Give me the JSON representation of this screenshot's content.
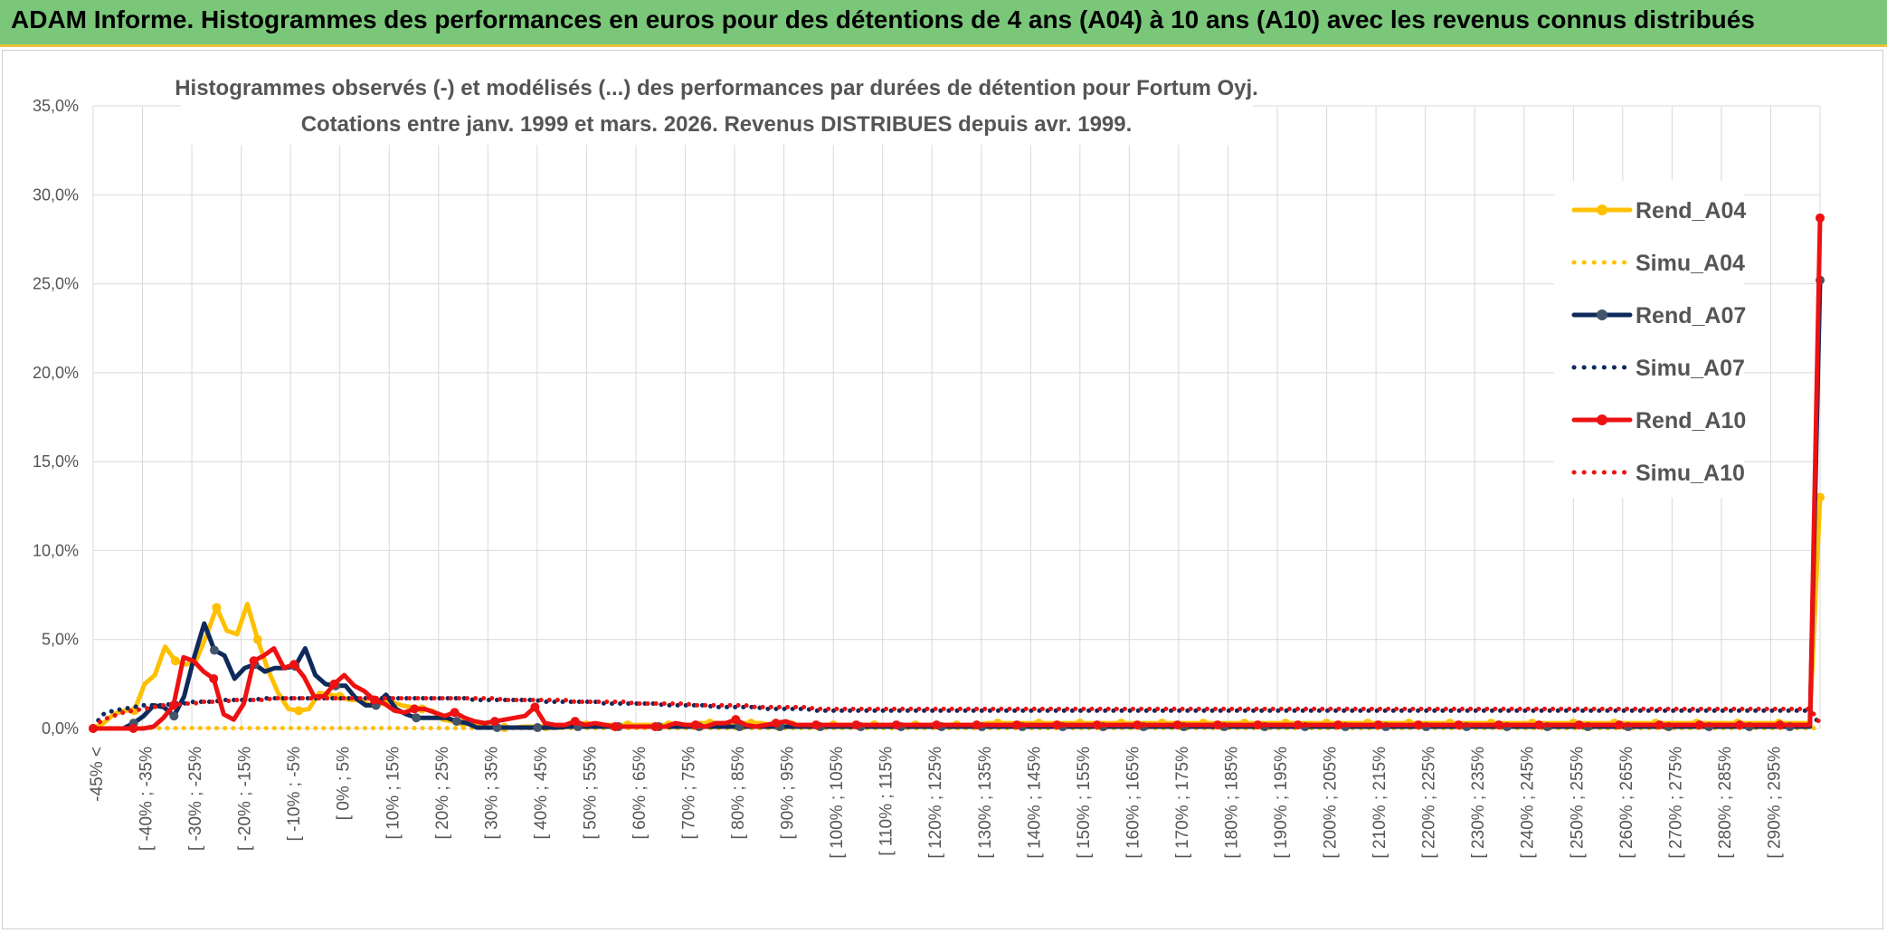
{
  "header": {
    "title": "ADAM Informe. Histogrammes des performances en euros pour des détentions de 4 ans (A04) à 10 ans (A10) avec les revenus connus distribués"
  },
  "chart_data": {
    "type": "line",
    "title_line1": "Histogrammes observés (-) et modélisés (...) des performances par durées de détention pour Fortum Oyj.",
    "title_line2": "Cotations entre janv. 1999 et mars. 2026. Revenus DISTRIBUES depuis avr. 1999.",
    "ylim": [
      0,
      35
    ],
    "yticks": [
      "0,0%",
      "5,0%",
      "10,0%",
      "15,0%",
      "20,0%",
      "25,0%",
      "30,0%",
      "35,0%"
    ],
    "x_labels": [
      "-45% <",
      "[ -40% ; -35%",
      "[ -30% ; -25%",
      "[ -20% ; -15%",
      "[ -10% ; -5%",
      "[ 0% ; 5%",
      "[ 10% ; 15%",
      "[ 20% ; 25%",
      "[ 30% ; 35%",
      "[ 40% ; 45%",
      "[ 50% ; 55%",
      "[ 60% ; 65%",
      "[ 70% ; 75%",
      "[ 80% ; 85%",
      "[ 90% ; 95%",
      "[ 100% ; 105%",
      "[ 110% ; 115%",
      "[ 120% ; 125%",
      "[ 130% ; 135%",
      "[ 140% ; 145%",
      "[ 150% ; 155%",
      "[ 160% ; 165%",
      "[ 170% ; 175%",
      "[ 180% ; 185%",
      "[ 190% ; 195%",
      "[ 200% ; 205%",
      "[ 210% ; 215%",
      "[ 220% ; 225%",
      "[ 230% ; 235%",
      "[ 240% ; 245%",
      "[ 250% ; 255%",
      "[ 260% ; 265%",
      "[ 270% ; 275%",
      "[ 280% ; 285%",
      "[ 290% ; 295%"
    ],
    "legend_position": "right",
    "series": [
      {
        "name": "Rend_A04",
        "color": "#ffc000",
        "style": "solid",
        "values": [
          0,
          0.3,
          0.8,
          1.0,
          1.0,
          2.5,
          3.0,
          4.6,
          3.8,
          3.6,
          3.8,
          5.2,
          6.8,
          5.5,
          5.3,
          7.0,
          5.0,
          3.3,
          2.0,
          1.1,
          1.0,
          1.1,
          2.0,
          1.9,
          1.8,
          1.6,
          1.6,
          1.3,
          1.5,
          1.5,
          1.3,
          1.2,
          1.1,
          1.0,
          0.5,
          0.4,
          0.3,
          0.2,
          0.1,
          0.05,
          0.05,
          0.05,
          0.1,
          0.1,
          0.1,
          0.1,
          0.1,
          0.2,
          0.2,
          0.2,
          0.2,
          0.2,
          0.2,
          0.2,
          0.2,
          0.2,
          0.2,
          0.2,
          0.2,
          0.3,
          0.3,
          0.3,
          0.3,
          0.3,
          0.3,
          0.3,
          0.2,
          0.2,
          0.2,
          0.2,
          0.2,
          0.2,
          0.2,
          0.2,
          0.2,
          0.2,
          0.2,
          0.2,
          0.2,
          0.2,
          0.2,
          0.2,
          0.2,
          0.2,
          0.2,
          0.2,
          0.2,
          0.3,
          0.3,
          0.3,
          0.3,
          0.3,
          0.3,
          0.3,
          0.3,
          0.3,
          0.3,
          0.3,
          0.3,
          0.3,
          0.3,
          0.3,
          0.3,
          0.3,
          0.3,
          0.3,
          0.3,
          0.3,
          0.3,
          0.3,
          0.3,
          0.3,
          0.3,
          0.3,
          0.3,
          0.3,
          0.3,
          0.3,
          0.3,
          0.3,
          0.3,
          0.3,
          0.3,
          0.3,
          0.3,
          0.3,
          0.3,
          0.3,
          0.3,
          0.3,
          0.3,
          0.3,
          0.3,
          0.3,
          0.3,
          0.3,
          0.3,
          0.3,
          0.3,
          0.3,
          0.3,
          0.3,
          0.3,
          0.3,
          0.3,
          0.3,
          0.3,
          0.3,
          0.3,
          0.3,
          0.3,
          0.3,
          0.3,
          0.3,
          0.3,
          0.3,
          0.3,
          0.3,
          0.3,
          0.3,
          0.3,
          0.3,
          0.3,
          0.3,
          0.3,
          0.3,
          0.3,
          0.3,
          13.0
        ]
      },
      {
        "name": "Simu_A04",
        "color": "#ffc000",
        "style": "dotted",
        "values": [
          0.02,
          0.02,
          0.02,
          0.02,
          0.02,
          0.02,
          0.02,
          0.02,
          0.02,
          0.02,
          0.02,
          0.02,
          0.02,
          0.02,
          0.02,
          0.02,
          0.02,
          0.02,
          0.02,
          0.02,
          0.02,
          0.02,
          0.02,
          0.02,
          0.02,
          0.02,
          0.02,
          0.02,
          0.02,
          0.02,
          0.02,
          0.02,
          0.02,
          0.02,
          0.02,
          0.02,
          0.02,
          0.02,
          0.02,
          0.02,
          0.02,
          0.02,
          0.02,
          0.02,
          0.02,
          0.02,
          0.02,
          0.02,
          0.02,
          0.02,
          0.02,
          0.02,
          0.02,
          0.02,
          0.02,
          0.02,
          0.02,
          0.02,
          0.02,
          0.02,
          0.02,
          0.02,
          0.02,
          0.02,
          0.02,
          0.02,
          0.02,
          0.02,
          0.02,
          0.02,
          0.02,
          0.02,
          0.02,
          0.02,
          0.02,
          0.02,
          0.02,
          0.02,
          0.02,
          0.02,
          0.02,
          0.02,
          0.02,
          0.02,
          0.02,
          0.02,
          0.02,
          0.02,
          0.02,
          0.02,
          0.02,
          0.02,
          0.02,
          0.02,
          0.02,
          0.02,
          0.02,
          0.02,
          0.02,
          0.02,
          0.02,
          0.02,
          0.02,
          0.02,
          0.02,
          0.02,
          0.02,
          0.02,
          0.02,
          0.02,
          0.02,
          0.02,
          0.02,
          0.02,
          0.02,
          0.02,
          0.02,
          0.02,
          0.02,
          0.02,
          0.02,
          0.02,
          0.02,
          0.02,
          0.02,
          0.02,
          0.02,
          0.02,
          0.02,
          0.02,
          0.02,
          0.02,
          0.02,
          0.02,
          0.02,
          0.02,
          0.02,
          0.02,
          0.02,
          0.02,
          0.02,
          0.02,
          0.02,
          0.02,
          0.02,
          0.02,
          0.02,
          0.02,
          0.02,
          0.02,
          0.02,
          0.02,
          0.02,
          0.02,
          0.02,
          0.02,
          0.02,
          0.02,
          0.02,
          0.02,
          0.02,
          0.02,
          0.02,
          0.02,
          0.02,
          0.02,
          0.02,
          0.02,
          0.02,
          0.02,
          0.02,
          0.02,
          0.02,
          0.02,
          0.02,
          0.02,
          0.02,
          0.02,
          0.02
        ]
      },
      {
        "name": "Rend_A07",
        "color": "#0e2a5c",
        "style": "solid",
        "values": [
          0,
          0,
          0,
          0,
          0.3,
          0.7,
          1.3,
          1.2,
          0.7,
          1.8,
          4.0,
          5.9,
          4.4,
          4.1,
          2.8,
          3.4,
          3.6,
          3.2,
          3.4,
          3.4,
          3.5,
          4.5,
          3.0,
          2.5,
          2.4,
          2.4,
          1.7,
          1.3,
          1.3,
          1.9,
          1.1,
          0.8,
          0.6,
          0.6,
          0.6,
          0.6,
          0.4,
          0.3,
          0.05,
          0.05,
          0.05,
          0.05,
          0.05,
          0.05,
          0.05,
          0.05,
          0.05,
          0.1,
          0.1,
          0.1,
          0.1,
          0.1,
          0.1,
          0.1,
          0.1,
          0.1,
          0.1,
          0.1,
          0.1,
          0.1,
          0.1,
          0.1,
          0.1,
          0.1,
          0.1,
          0.1,
          0.1,
          0.1,
          0.1,
          0.1,
          0.1,
          0.1,
          0.1,
          0.1,
          0.1,
          0.1,
          0.1,
          0.1,
          0.1,
          0.1,
          0.1,
          0.1,
          0.1,
          0.1,
          0.1,
          0.1,
          0.1,
          0.1,
          0.1,
          0.1,
          0.1,
          0.1,
          0.1,
          0.1,
          0.1,
          0.1,
          0.1,
          0.1,
          0.1,
          0.1,
          0.1,
          0.1,
          0.1,
          0.1,
          0.1,
          0.1,
          0.1,
          0.1,
          0.1,
          0.1,
          0.1,
          0.1,
          0.1,
          0.1,
          0.1,
          0.1,
          0.1,
          0.1,
          0.1,
          0.1,
          0.1,
          0.1,
          0.1,
          0.1,
          0.1,
          0.1,
          0.1,
          0.1,
          0.1,
          0.1,
          0.1,
          0.1,
          0.1,
          0.1,
          0.1,
          0.1,
          0.1,
          0.1,
          0.1,
          0.1,
          0.1,
          0.1,
          0.1,
          0.1,
          0.1,
          0.1,
          0.1,
          0.1,
          0.1,
          0.1,
          0.1,
          0.1,
          0.1,
          0.1,
          0.1,
          0.1,
          0.1,
          0.1,
          0.1,
          0.1,
          0.1,
          0.1,
          0.1,
          0.1,
          0.1,
          0.1,
          0.1,
          0.1,
          0.1,
          0.1,
          0.1,
          25.2
        ]
      },
      {
        "name": "Simu_A07",
        "color": "#0e2a5c",
        "style": "dotted",
        "values": [
          0.1,
          0.8,
          1.0,
          1.1,
          1.2,
          1.3,
          1.3,
          1.3,
          1.4,
          1.4,
          1.5,
          1.5,
          1.5,
          1.6,
          1.6,
          1.6,
          1.6,
          1.7,
          1.7,
          1.7,
          1.7,
          1.7,
          1.7,
          1.7,
          1.7,
          1.7,
          1.7,
          1.7,
          1.7,
          1.7,
          1.7,
          1.7,
          1.7,
          1.7,
          1.7,
          1.7,
          1.7,
          1.7,
          1.6,
          1.6,
          1.6,
          1.6,
          1.6,
          1.6,
          1.6,
          1.5,
          1.5,
          1.5,
          1.5,
          1.5,
          1.5,
          1.4,
          1.4,
          1.4,
          1.4,
          1.4,
          1.4,
          1.3,
          1.3,
          1.3,
          1.3,
          1.3,
          1.2,
          1.2,
          1.2,
          1.2,
          1.2,
          1.1,
          1.1,
          1.1,
          1.1,
          1.1,
          1.0,
          1.0,
          1.0,
          1.0,
          1.0,
          1.0,
          1.0,
          1.0,
          1.0,
          1.0,
          1.0,
          1.0,
          1.0,
          1.0,
          1.0,
          1.0,
          1.0,
          1.0,
          1.0,
          1.0,
          1.0,
          1.0,
          1.0,
          1.0,
          1.0,
          1.0,
          1.0,
          1.0,
          1.0,
          1.0,
          1.0,
          1.0,
          1.0,
          1.0,
          1.0,
          1.0,
          1.0,
          1.0,
          1.0,
          1.0,
          1.0,
          1.0,
          1.0,
          1.0,
          1.0,
          1.0,
          1.0,
          1.0,
          1.0,
          1.0,
          1.0,
          1.0,
          1.0,
          1.0,
          1.0,
          1.0,
          1.0,
          1.0,
          1.0,
          1.0,
          1.0,
          1.0,
          1.0,
          1.0,
          1.0,
          1.0,
          1.0,
          1.0,
          1.0,
          1.0,
          1.0,
          1.0,
          1.0,
          1.0,
          1.0,
          1.0,
          1.0,
          1.0,
          1.0,
          1.0,
          1.0,
          1.0,
          1.0,
          1.0,
          1.0,
          1.0,
          1.0,
          1.0,
          1.0,
          1.0,
          1.0,
          1.0,
          1.0,
          1.0,
          1.0,
          1.0,
          1.0,
          1.0,
          1.0,
          1.0,
          0.2
        ]
      },
      {
        "name": "Rend_A10",
        "color": "#ee1111",
        "style": "solid",
        "values": [
          0,
          0,
          0,
          0,
          0,
          0,
          0.1,
          0.6,
          1.3,
          4.0,
          3.8,
          3.2,
          2.8,
          0.8,
          0.5,
          1.4,
          3.8,
          4.1,
          4.5,
          3.4,
          3.6,
          2.9,
          1.8,
          1.8,
          2.5,
          3.0,
          2.4,
          2.1,
          1.6,
          1.4,
          1.0,
          0.9,
          1.1,
          1.1,
          0.9,
          0.7,
          0.9,
          0.6,
          0.4,
          0.3,
          0.4,
          0.5,
          0.6,
          0.7,
          1.2,
          0.3,
          0.2,
          0.2,
          0.4,
          0.2,
          0.3,
          0.2,
          0.1,
          0.1,
          0.1,
          0.1,
          0.1,
          0.1,
          0.3,
          0.2,
          0.2,
          0.1,
          0.3,
          0.3,
          0.5,
          0.2,
          0.1,
          0.2,
          0.3,
          0.4,
          0.2,
          0.2,
          0.2,
          0.2,
          0.2,
          0.2,
          0.2,
          0.2,
          0.2,
          0.2,
          0.2,
          0.2,
          0.2,
          0.2,
          0.2,
          0.2,
          0.2,
          0.2,
          0.2,
          0.2,
          0.2,
          0.2,
          0.2,
          0.2,
          0.2,
          0.2,
          0.2,
          0.2,
          0.2,
          0.2,
          0.2,
          0.2,
          0.2,
          0.2,
          0.2,
          0.2,
          0.2,
          0.2,
          0.2,
          0.2,
          0.2,
          0.2,
          0.2,
          0.2,
          0.2,
          0.2,
          0.2,
          0.2,
          0.2,
          0.2,
          0.2,
          0.2,
          0.2,
          0.2,
          0.2,
          0.2,
          0.2,
          0.2,
          0.2,
          0.2,
          0.2,
          0.2,
          0.2,
          0.2,
          0.2,
          0.2,
          0.2,
          0.2,
          0.2,
          0.2,
          0.2,
          0.2,
          0.2,
          0.2,
          0.2,
          0.2,
          0.2,
          0.2,
          0.2,
          0.2,
          0.2,
          0.2,
          0.2,
          0.2,
          0.2,
          0.2,
          0.2,
          0.2,
          0.2,
          0.2,
          0.2,
          0.2,
          0.2,
          0.2,
          0.2,
          0.2,
          0.2,
          0.2,
          0.2,
          0.2,
          0.2,
          0.2,
          28.7
        ]
      },
      {
        "name": "Simu_A10",
        "color": "#ee1111",
        "style": "dotted",
        "values": [
          0.1,
          0.5,
          0.7,
          0.9,
          1.0,
          1.1,
          1.2,
          1.3,
          1.3,
          1.4,
          1.4,
          1.5,
          1.5,
          1.5,
          1.6,
          1.6,
          1.6,
          1.6,
          1.7,
          1.7,
          1.7,
          1.7,
          1.7,
          1.7,
          1.7,
          1.7,
          1.7,
          1.7,
          1.7,
          1.7,
          1.7,
          1.7,
          1.7,
          1.7,
          1.7,
          1.7,
          1.7,
          1.7,
          1.7,
          1.7,
          1.7,
          1.6,
          1.6,
          1.6,
          1.6,
          1.6,
          1.6,
          1.6,
          1.5,
          1.5,
          1.5,
          1.5,
          1.5,
          1.5,
          1.4,
          1.4,
          1.4,
          1.4,
          1.4,
          1.4,
          1.3,
          1.3,
          1.3,
          1.3,
          1.3,
          1.3,
          1.2,
          1.2,
          1.2,
          1.2,
          1.2,
          1.2,
          1.1,
          1.1,
          1.1,
          1.1,
          1.1,
          1.1,
          1.1,
          1.1,
          1.1,
          1.1,
          1.1,
          1.1,
          1.1,
          1.1,
          1.1,
          1.1,
          1.1,
          1.1,
          1.1,
          1.1,
          1.1,
          1.1,
          1.1,
          1.1,
          1.1,
          1.1,
          1.1,
          1.1,
          1.1,
          1.1,
          1.1,
          1.1,
          1.1,
          1.1,
          1.1,
          1.1,
          1.1,
          1.1,
          1.1,
          1.1,
          1.1,
          1.1,
          1.1,
          1.1,
          1.1,
          1.1,
          1.1,
          1.1,
          1.1,
          1.1,
          1.1,
          1.1,
          1.1,
          1.1,
          1.1,
          1.1,
          1.1,
          1.1,
          1.1,
          1.1,
          1.1,
          1.1,
          1.1,
          1.1,
          1.1,
          1.1,
          1.1,
          1.1,
          1.1,
          1.1,
          1.1,
          1.1,
          1.1,
          1.1,
          1.1,
          1.1,
          1.1,
          1.1,
          1.1,
          1.1,
          1.1,
          1.1,
          1.1,
          1.1,
          1.1,
          1.1,
          1.1,
          1.1,
          1.1,
          1.1,
          1.1,
          1.1,
          1.1,
          1.1,
          1.1,
          1.1,
          1.1,
          1.1,
          1.1,
          1.1,
          0.3
        ]
      }
    ]
  }
}
